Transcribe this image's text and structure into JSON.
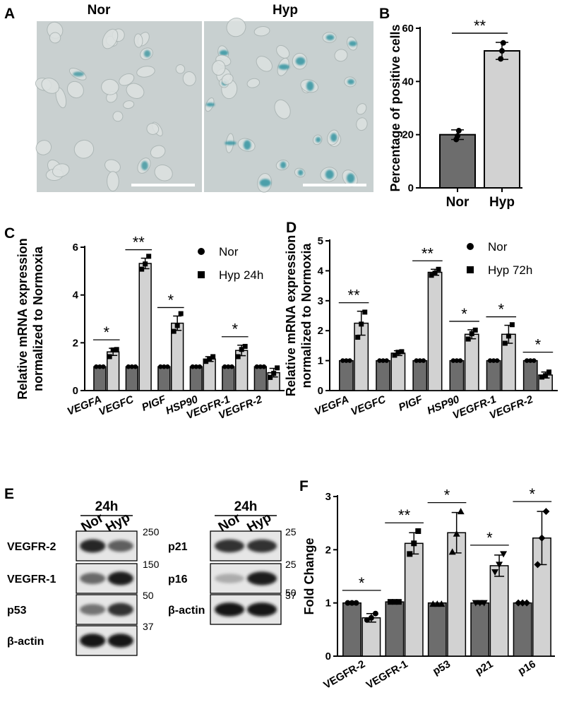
{
  "panel_labels": [
    "A",
    "B",
    "C",
    "D",
    "E",
    "F"
  ],
  "panelA": {
    "images": [
      {
        "label": "Nor",
        "description_colors": {
          "bg": "#c9d0d0",
          "stain": "#2e8f9a"
        },
        "positive_level": 0.1
      },
      {
        "label": "Hyp",
        "description_colors": {
          "bg": "#c8d0d0",
          "stain": "#1d8a99"
        },
        "positive_level": 0.52
      }
    ],
    "scale_bar_color": "#ffffff"
  },
  "panelE": {
    "blots": [
      {
        "timepoint": "24h",
        "lanes": [
          "Nor",
          "Hyp"
        ],
        "rows": [
          {
            "label": "VEGFR-2",
            "mw": "250",
            "intensity": [
              0.85,
              0.55
            ]
          },
          {
            "label": "VEGFR-1",
            "mw": "150",
            "intensity": [
              0.5,
              0.9
            ]
          },
          {
            "label": "p53",
            "mw": "50",
            "intensity": [
              0.45,
              0.8
            ]
          },
          {
            "label": "β-actin",
            "mw": "37",
            "intensity": [
              0.95,
              0.95
            ]
          }
        ]
      },
      {
        "timepoint": "24h",
        "lanes": [
          "Nor",
          "Hyp"
        ],
        "rows": [
          {
            "label": "p21",
            "mw": "25",
            "intensity": [
              0.8,
              0.8
            ]
          },
          {
            "label": "p16",
            "mw": "25",
            "intensity": [
              0.15,
              0.9
            ],
            "mw_below": "50"
          },
          {
            "label": "β-actin",
            "mw": "37",
            "intensity": [
              0.95,
              0.95
            ]
          }
        ]
      }
    ]
  },
  "chart_data": [
    {
      "id": "B",
      "type": "bar",
      "categories": [
        "Nor",
        "Hyp"
      ],
      "values": [
        20,
        51.5
      ],
      "errors": [
        1.8,
        3.2
      ],
      "points": [
        [
          18.2,
          19.5,
          21.5
        ],
        [
          48.5,
          51.5,
          54.5
        ]
      ],
      "ylabel": "Percentage of positive cells",
      "ylim": [
        0,
        60
      ],
      "yticks": [
        0,
        20,
        40,
        60
      ],
      "colors": [
        "#6d6d6d",
        "#d2d2d2"
      ],
      "significance": [
        {
          "from": 0,
          "to": 1,
          "label": "**"
        }
      ],
      "grid": false
    },
    {
      "id": "C",
      "type": "bar",
      "categories": [
        "VEGFA",
        "VEGFC",
        "PIGF",
        "HSP90",
        "VEGFR-1",
        "VEGFR-2"
      ],
      "series": [
        {
          "name": "Nor",
          "marker": "circle",
          "color": "#6d6d6d",
          "values": [
            1,
            1,
            1,
            1,
            1,
            1
          ],
          "errors": [
            0,
            0,
            0,
            0,
            0,
            0
          ]
        },
        {
          "name": "Hyp 24h",
          "marker": "square",
          "color": "#d2d2d2",
          "values": [
            1.62,
            5.32,
            2.82,
            1.32,
            1.68,
            0.75
          ],
          "errors": [
            0.15,
            0.22,
            0.3,
            0.1,
            0.22,
            0.18
          ]
        }
      ],
      "points_hyp": [
        [
          1.42,
          1.7,
          1.72
        ],
        [
          5.08,
          5.3,
          5.62
        ],
        [
          2.48,
          2.72,
          3.22
        ],
        [
          1.22,
          1.3,
          1.42
        ],
        [
          1.42,
          1.72,
          1.85
        ],
        [
          0.55,
          0.72,
          0.95
        ]
      ],
      "ylabel": "Relative mRNA expression normalized to Normoxia",
      "ylabel_lines": [
        "Relative mRNA expression",
        "normalized to Normoxia"
      ],
      "ylim": [
        0,
        6
      ],
      "yticks": [
        0,
        2,
        4,
        6
      ],
      "significance": [
        {
          "category": 0,
          "label": "*"
        },
        {
          "category": 1,
          "label": "**"
        },
        {
          "category": 2,
          "label": "*"
        },
        {
          "category": 4,
          "label": "*"
        }
      ],
      "legend": "top-right",
      "grid": false
    },
    {
      "id": "D",
      "type": "bar",
      "categories": [
        "VEGFA",
        "VEGFC",
        "PIGF",
        "HSP90",
        "VEGFR-1",
        "VEGFR-2"
      ],
      "series": [
        {
          "name": "Nor",
          "marker": "circle",
          "color": "#6d6d6d",
          "values": [
            1,
            1,
            1,
            1,
            1,
            1
          ],
          "errors": [
            0,
            0,
            0,
            0,
            0,
            0
          ]
        },
        {
          "name": "Hyp 72h",
          "marker": "square",
          "color": "#d2d2d2",
          "values": [
            2.25,
            1.25,
            3.95,
            1.88,
            1.88,
            0.52
          ],
          "errors": [
            0.4,
            0.08,
            0.1,
            0.15,
            0.3,
            0.1
          ]
        }
      ],
      "points_hyp": [
        [
          1.78,
          2.22,
          2.62
        ],
        [
          1.18,
          1.28,
          1.3
        ],
        [
          3.85,
          3.92,
          4.05
        ],
        [
          1.72,
          1.9,
          2.02
        ],
        [
          1.58,
          1.82,
          2.2
        ],
        [
          0.45,
          0.5,
          0.62
        ]
      ],
      "ylabel": "Relative mRNA expression normalized to Normoxia",
      "ylabel_lines": [
        "Relative mRNA expression",
        "normalized to Normoxia"
      ],
      "ylim": [
        0,
        5
      ],
      "yticks": [
        0,
        1,
        2,
        3,
        4,
        5
      ],
      "significance": [
        {
          "category": 0,
          "label": "**"
        },
        {
          "category": 2,
          "label": "**"
        },
        {
          "category": 3,
          "label": "*"
        },
        {
          "category": 4,
          "label": "*"
        },
        {
          "category": 5,
          "label": "*"
        }
      ],
      "legend": "top-right",
      "grid": false
    },
    {
      "id": "F",
      "type": "bar",
      "categories": [
        "VEGFR-2",
        "VEGFR-1",
        "p53",
        "p21",
        "p16"
      ],
      "series": [
        {
          "name": "Nor",
          "color": "#6d6d6d",
          "values": [
            1,
            1.02,
            1,
            1,
            1
          ],
          "errors": [
            0,
            0.02,
            0,
            0.02,
            0
          ]
        },
        {
          "name": "Hyp",
          "color": "#d2d2d2",
          "values": [
            0.72,
            2.12,
            2.32,
            1.7,
            2.22
          ],
          "errors": [
            0.08,
            0.2,
            0.38,
            0.2,
            0.5
          ]
        }
      ],
      "points_nor": [
        [
          1,
          1,
          1
        ],
        [
          1.02,
          1.02,
          1.02
        ],
        [
          0.98,
          0.98,
          0.98
        ],
        [
          1,
          1,
          1
        ],
        [
          1,
          1,
          1
        ]
      ],
      "points_hyp": [
        [
          0.68,
          0.72,
          0.8
        ],
        [
          1.92,
          2.12,
          2.35
        ],
        [
          1.96,
          2.3,
          2.72
        ],
        [
          1.58,
          1.72,
          1.92
        ],
        [
          1.72,
          2.22,
          2.72
        ]
      ],
      "markers": [
        "circle",
        "square",
        "triangle",
        "inverted-triangle",
        "diamond"
      ],
      "ylabel": "Fold Change",
      "ylim": [
        0,
        3
      ],
      "yticks": [
        0,
        1,
        2,
        3
      ],
      "significance": [
        {
          "category": 0,
          "label": "*"
        },
        {
          "category": 1,
          "label": "**"
        },
        {
          "category": 2,
          "label": "*"
        },
        {
          "category": 3,
          "label": "*"
        },
        {
          "category": 4,
          "label": "*"
        }
      ],
      "grid": false
    }
  ]
}
